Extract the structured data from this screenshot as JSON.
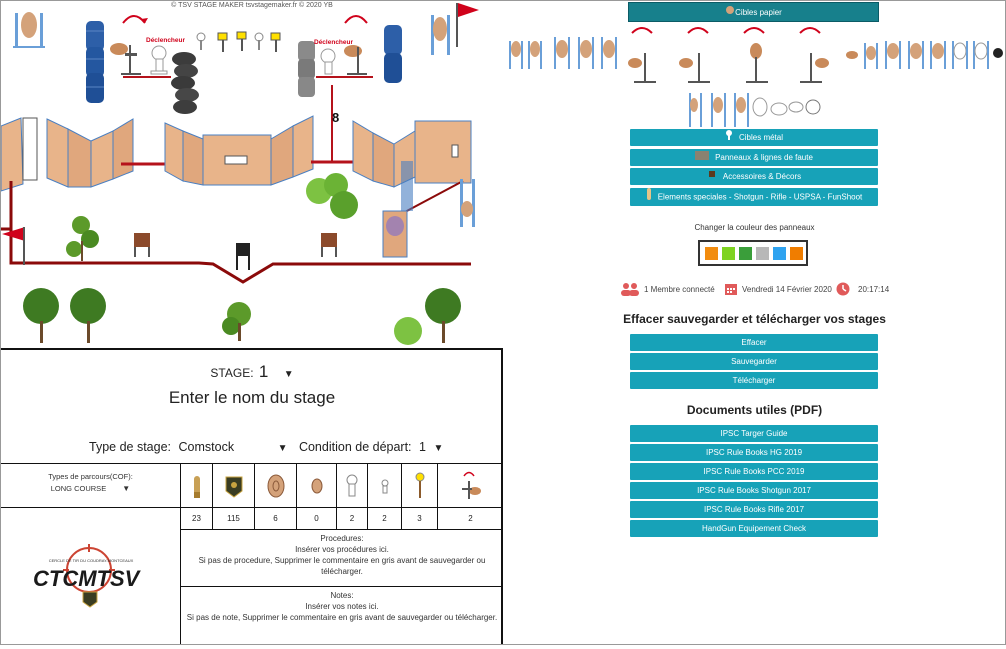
{
  "header": {
    "copyright": "© TSV STAGE MAKER tsvstagemaker.fr © 2020 YB"
  },
  "canvas": {
    "trigger_label_1": "Déclencheur",
    "trigger_label_2": "Déclencheur",
    "distance_label": "8"
  },
  "stage": {
    "label": "STAGE:",
    "number": "1",
    "name_placeholder": "Enter le nom du stage",
    "type_label": "Type de stage:",
    "type_value": "Comstock",
    "start_label": "Condition de départ:",
    "start_value": "1"
  },
  "cof": {
    "label": "Types de parcours(COF):",
    "value": "LONG COURSE",
    "counts": [
      "23",
      "115",
      "6",
      "0",
      "2",
      "2",
      "3",
      "2"
    ],
    "icons": [
      "bullet-icon",
      "ipsc-badge-icon",
      "paper-target-icon",
      "mini-target-icon",
      "popper-icon",
      "mini-popper-icon",
      "swinger-icon",
      "activator-icon"
    ]
  },
  "logo": {
    "brand": "CTCMTSV",
    "subtitle": "CERCLE DE TIR DU COUDRAY-MONTCEAUX"
  },
  "procedures": {
    "title": "Procedures:",
    "line1": "Insérer vos procédures ici.",
    "line2": "Si pas de procedure, Supprimer le commentaire en gris avant de sauvegarder ou télécharger."
  },
  "notes": {
    "title": "Notes:",
    "line1": "Insérer vos notes ici.",
    "line2": "Si pas de note, Supprimer le commentaire en gris avant de sauvegarder ou télécharger."
  },
  "panel": {
    "cibles_papier": "Cibles papier",
    "cibles_metal": "Cibles métal",
    "panneaux": "Panneaux & lignes de faute",
    "accessoires": "Accessoires & Décors",
    "speciales": "Elements speciales - Shotgun - Rifle - USPSA - FunShoot",
    "color_label": "Changer la couleur des panneaux",
    "colors": [
      "#f28c0f",
      "#7ed321",
      "#3a9e3a",
      "#b8b8b8",
      "#2fa3f0",
      "#f07d00"
    ],
    "members": "1 Membre connecté",
    "date": "Vendredi 14 Février 2020",
    "time": "20:17:14",
    "save_title": "Effacer sauvegarder et télécharger vos stages",
    "effacer": "Effacer",
    "sauvegarder": "Sauvegarder",
    "telecharger": "Télécharger",
    "docs_title": "Documents utiles (PDF)",
    "docs": [
      "IPSC Targer Guide",
      "IPSC Rule Books HG 2019",
      "IPSC Rule Books PCC 2019",
      "IPSC Rule Books Shotgun 2017",
      "IPSC Rule Books Rifle 2017",
      "HandGun Equipement Check"
    ],
    "accent": "#17a2b8",
    "status_icon_color": "#e05a5a"
  }
}
